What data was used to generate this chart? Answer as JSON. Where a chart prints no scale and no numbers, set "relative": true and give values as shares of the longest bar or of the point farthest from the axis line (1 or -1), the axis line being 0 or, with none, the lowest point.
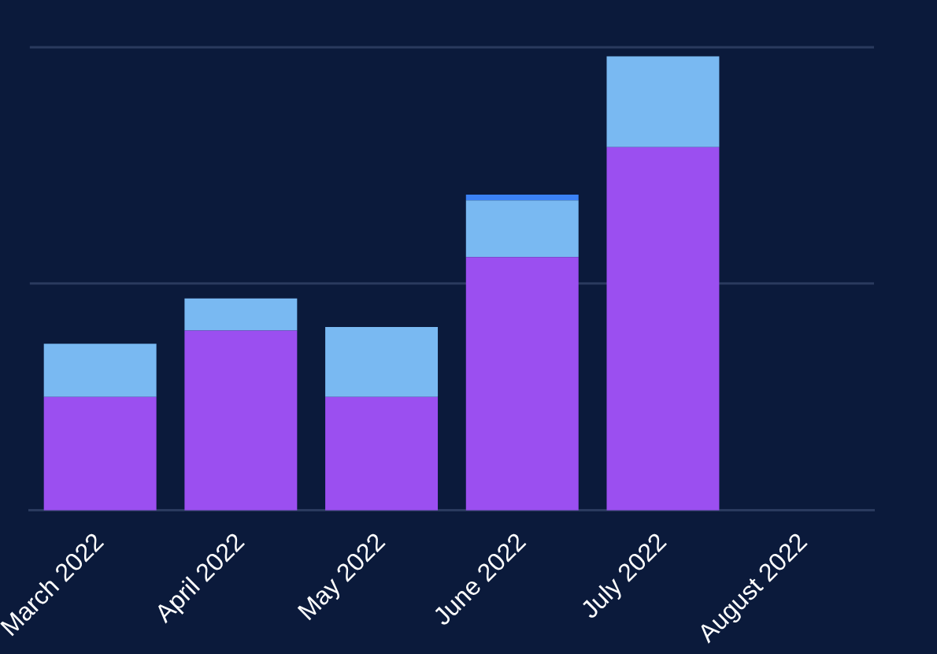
{
  "chart_data": {
    "type": "bar",
    "stacked": true,
    "relative": true,
    "ref_lines": [
      {
        "axis": "y",
        "value": 0.5,
        "color": "#2a3a5e"
      },
      {
        "axis": "y",
        "value": 1.02,
        "color": "#2a3a5e"
      }
    ],
    "categories": [
      "March 2022",
      "April 2022",
      "May 2022",
      "June 2022",
      "July 2022",
      "August 2022"
    ],
    "series": [
      {
        "color": "#9b4ff0",
        "values": [
          0.25,
          0.396,
          0.25,
          0.558,
          0.8,
          null
        ]
      },
      {
        "color": "#79b9f2",
        "values": [
          0.117,
          0.071,
          0.154,
          0.125,
          0.2,
          null
        ]
      },
      {
        "color": "#3b82f6",
        "values": [
          0,
          0,
          0,
          0.0125,
          0,
          null
        ]
      }
    ]
  }
}
